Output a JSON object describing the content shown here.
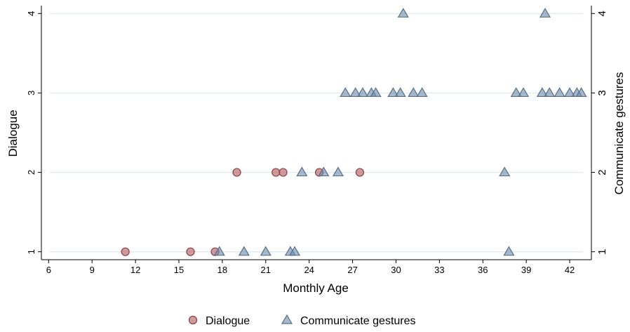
{
  "chart_data": {
    "type": "scatter",
    "xlabel": "Monthly Age",
    "ylabel_left": "Dialogue",
    "ylabel_right": "Communicate gestures",
    "xlim": [
      5.5,
      43.5
    ],
    "ylim": [
      0.9,
      4.1
    ],
    "x_ticks": [
      6,
      9,
      12,
      15,
      18,
      21,
      24,
      27,
      30,
      33,
      36,
      39,
      42
    ],
    "y_ticks": [
      1,
      2,
      3,
      4
    ],
    "grid": true,
    "legend_position": "bottom",
    "series": [
      {
        "name": "Dialogue",
        "marker": "circle",
        "color": "#b0595c",
        "axis": "left",
        "points": [
          {
            "x": 11.3,
            "y": 1
          },
          {
            "x": 15.8,
            "y": 1
          },
          {
            "x": 17.5,
            "y": 1
          },
          {
            "x": 19.0,
            "y": 2
          },
          {
            "x": 21.7,
            "y": 2
          },
          {
            "x": 22.2,
            "y": 2
          },
          {
            "x": 24.7,
            "y": 2
          },
          {
            "x": 27.5,
            "y": 2
          }
        ]
      },
      {
        "name": "Communicate gestures",
        "marker": "triangle",
        "color": "#6f8aa6",
        "axis": "right",
        "points": [
          {
            "x": 17.8,
            "y": 1
          },
          {
            "x": 19.5,
            "y": 1
          },
          {
            "x": 21.0,
            "y": 1
          },
          {
            "x": 22.7,
            "y": 1
          },
          {
            "x": 23.0,
            "y": 1
          },
          {
            "x": 37.8,
            "y": 1
          },
          {
            "x": 23.5,
            "y": 2
          },
          {
            "x": 25.0,
            "y": 2
          },
          {
            "x": 26.0,
            "y": 2
          },
          {
            "x": 37.5,
            "y": 2
          },
          {
            "x": 26.5,
            "y": 3
          },
          {
            "x": 27.2,
            "y": 3
          },
          {
            "x": 27.7,
            "y": 3
          },
          {
            "x": 28.3,
            "y": 3
          },
          {
            "x": 28.6,
            "y": 3
          },
          {
            "x": 29.8,
            "y": 3
          },
          {
            "x": 30.3,
            "y": 3
          },
          {
            "x": 31.2,
            "y": 3
          },
          {
            "x": 31.8,
            "y": 3
          },
          {
            "x": 38.3,
            "y": 3
          },
          {
            "x": 38.8,
            "y": 3
          },
          {
            "x": 40.1,
            "y": 3
          },
          {
            "x": 40.6,
            "y": 3
          },
          {
            "x": 41.3,
            "y": 3
          },
          {
            "x": 42.0,
            "y": 3
          },
          {
            "x": 42.5,
            "y": 3
          },
          {
            "x": 42.8,
            "y": 3
          },
          {
            "x": 30.5,
            "y": 4
          },
          {
            "x": 40.3,
            "y": 4
          }
        ]
      }
    ]
  }
}
